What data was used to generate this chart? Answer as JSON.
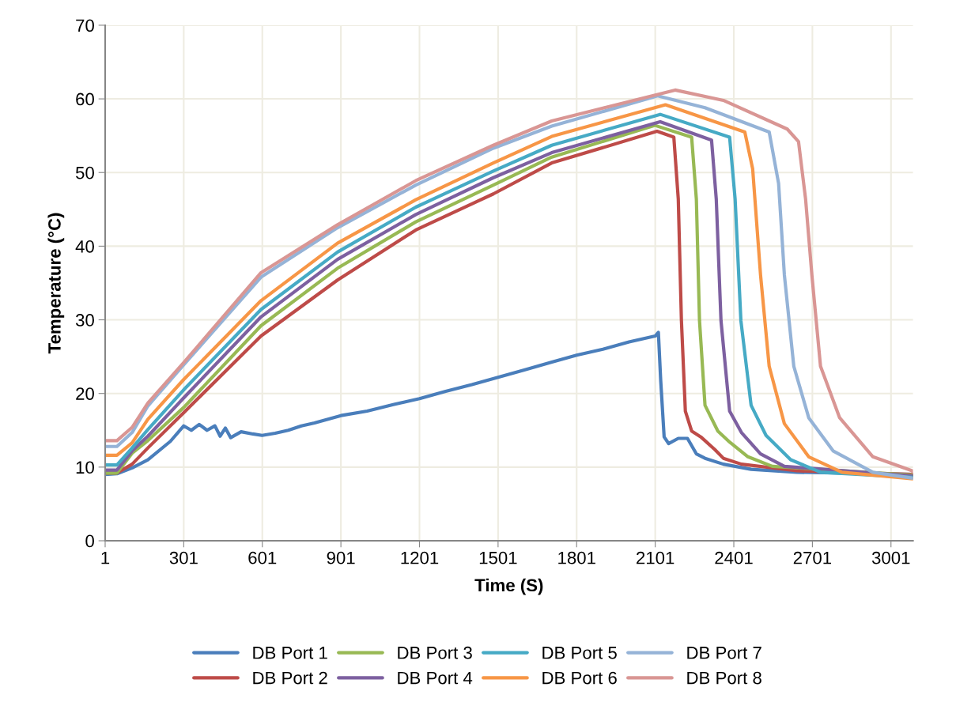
{
  "chart_data": {
    "type": "line",
    "xlabel": "Time (S)",
    "ylabel": "Temperature (°C)",
    "xlim": [
      1,
      3085
    ],
    "xticks": [
      1,
      301,
      601,
      901,
      1201,
      1501,
      1801,
      2101,
      2401,
      2701,
      3001
    ],
    "ylim": [
      0,
      70
    ],
    "yticks": [
      0,
      10,
      20,
      30,
      40,
      50,
      60,
      70
    ],
    "grid": true,
    "legend": "bottom",
    "marker": "none",
    "line_style": "solid",
    "series": [
      {
        "name": "DB Port 1",
        "color": "#4a7ebb",
        "x": [
          1,
          46,
          104,
          164,
          250,
          301,
          330,
          360,
          390,
          420,
          440,
          460,
          480,
          520,
          565,
          600,
          650,
          700,
          750,
          800,
          901,
          1001,
          1101,
          1201,
          1301,
          1401,
          1501,
          1601,
          1701,
          1801,
          1901,
          2001,
          2101,
          2113,
          2122,
          2135,
          2152,
          2189,
          2224,
          2258,
          2291,
          2361,
          2467,
          2642,
          3085
        ],
        "values": [
          9.0,
          9.1,
          9.9,
          11.0,
          13.5,
          15.6,
          15.0,
          15.8,
          15.0,
          15.6,
          14.2,
          15.3,
          14.0,
          14.8,
          14.5,
          14.3,
          14.6,
          15.0,
          15.6,
          16.0,
          17.0,
          17.6,
          18.5,
          19.3,
          20.3,
          21.2,
          22.2,
          23.2,
          24.2,
          25.2,
          26.0,
          27.0,
          27.8,
          28.3,
          21.7,
          14.1,
          13.2,
          13.9,
          13.9,
          11.8,
          11.2,
          10.4,
          9.7,
          9.3,
          9.0
        ]
      },
      {
        "name": "DB Port 2",
        "color": "#be4b48",
        "x": [
          1,
          46,
          104,
          164,
          301,
          596,
          888,
          1187,
          1483,
          1706,
          2108,
          2172,
          2189,
          2201,
          2216,
          2240,
          2275,
          2328,
          2361,
          2430,
          2642,
          3085
        ],
        "values": [
          9.2,
          9.2,
          10.4,
          12.6,
          17.4,
          27.8,
          35.4,
          42.2,
          47.1,
          51.3,
          55.6,
          54.8,
          46.4,
          29.9,
          17.6,
          14.9,
          14.1,
          12.4,
          11.2,
          10.4,
          9.5,
          9.0
        ]
      },
      {
        "name": "DB Port 3",
        "color": "#98b954",
        "x": [
          1,
          46,
          104,
          164,
          301,
          596,
          888,
          1187,
          1483,
          1706,
          2100,
          2240,
          2258,
          2270,
          2291,
          2340,
          2385,
          2455,
          2548,
          3085
        ],
        "values": [
          9.2,
          9.2,
          11.9,
          13.6,
          18.1,
          29.2,
          37.0,
          43.3,
          48.3,
          52.1,
          56.4,
          54.8,
          46.4,
          29.9,
          18.4,
          14.9,
          13.4,
          11.4,
          10.1,
          8.9
        ]
      },
      {
        "name": "DB Port 4",
        "color": "#7d60a0",
        "x": [
          1,
          46,
          104,
          164,
          301,
          596,
          888,
          1187,
          1483,
          1706,
          2120,
          2316,
          2334,
          2352,
          2385,
          2430,
          2503,
          2594,
          3085
        ],
        "values": [
          9.6,
          9.6,
          12.2,
          14.2,
          19.4,
          30.4,
          38.2,
          44.3,
          49.3,
          52.7,
          56.9,
          54.4,
          46.4,
          29.9,
          17.6,
          14.7,
          11.8,
          10.1,
          8.8
        ]
      },
      {
        "name": "DB Port 5",
        "color": "#46aac5",
        "x": [
          1,
          46,
          104,
          164,
          301,
          596,
          888,
          1187,
          1483,
          1706,
          2120,
          2385,
          2406,
          2428,
          2467,
          2524,
          2618,
          2733,
          3085
        ],
        "values": [
          10.3,
          10.3,
          12.6,
          15.1,
          20.5,
          31.4,
          39.2,
          45.3,
          50.2,
          53.7,
          57.9,
          54.8,
          46.4,
          29.9,
          18.4,
          14.3,
          11.0,
          9.3,
          8.6
        ]
      },
      {
        "name": "DB Port 6",
        "color": "#f79646",
        "x": [
          1,
          46,
          104,
          164,
          301,
          596,
          888,
          1187,
          1483,
          1706,
          2140,
          2443,
          2473,
          2503,
          2536,
          2594,
          2687,
          2814,
          3085
        ],
        "values": [
          11.6,
          11.6,
          13.3,
          16.5,
          21.9,
          32.6,
          40.4,
          46.3,
          51.3,
          54.9,
          59.2,
          55.5,
          50.5,
          36.1,
          23.7,
          15.9,
          11.4,
          9.3,
          8.4
        ]
      },
      {
        "name": "DB Port 7",
        "color": "#95b3d7",
        "x": [
          1,
          46,
          104,
          164,
          301,
          596,
          888,
          1187,
          1483,
          1706,
          2110,
          2291,
          2536,
          2572,
          2594,
          2630,
          2687,
          2780,
          2932,
          3085
        ],
        "values": [
          12.8,
          12.8,
          14.7,
          18.3,
          23.9,
          35.8,
          42.5,
          48.3,
          53.3,
          56.3,
          60.4,
          58.8,
          55.5,
          48.5,
          36.1,
          23.7,
          16.7,
          12.2,
          9.3,
          8.5
        ]
      },
      {
        "name": "DB Port 8",
        "color": "#d99694",
        "x": [
          1,
          46,
          104,
          164,
          301,
          596,
          888,
          1187,
          1483,
          1706,
          2177,
          2361,
          2605,
          2648,
          2675,
          2699,
          2732,
          2805,
          2932,
          3082,
          3085
        ],
        "values": [
          13.6,
          13.6,
          15.4,
          18.7,
          24.2,
          36.4,
          42.9,
          48.9,
          53.7,
          57.0,
          61.2,
          59.8,
          55.9,
          54.2,
          46.4,
          36.1,
          23.7,
          16.7,
          11.4,
          9.5,
          9.3
        ]
      }
    ]
  }
}
